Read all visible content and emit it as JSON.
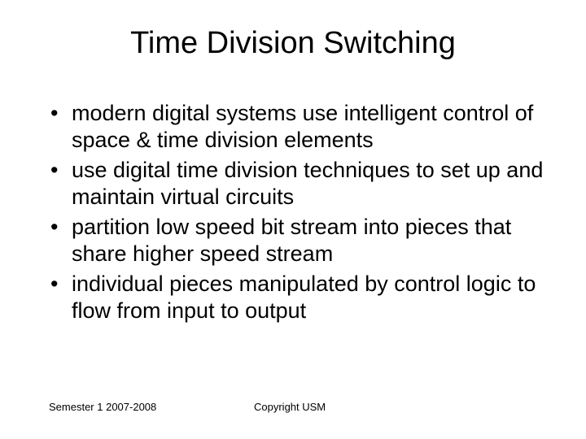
{
  "slide": {
    "title": "Time Division Switching",
    "bullets": [
      "modern digital systems use intelligent control of space & time division elements",
      "use digital time division techniques to set up and maintain virtual circuits",
      "partition low speed bit stream into pieces that share higher speed stream",
      "individual pieces manipulated by control logic to flow from input to output"
    ],
    "footer": {
      "left": "Semester 1 2007-2008",
      "center": "Copyright USM"
    }
  },
  "style": {
    "background_color": "#ffffff",
    "text_color": "#000000",
    "title_fontsize": 38,
    "body_fontsize": 27,
    "footer_fontsize": 13,
    "font_family": "Arial"
  }
}
